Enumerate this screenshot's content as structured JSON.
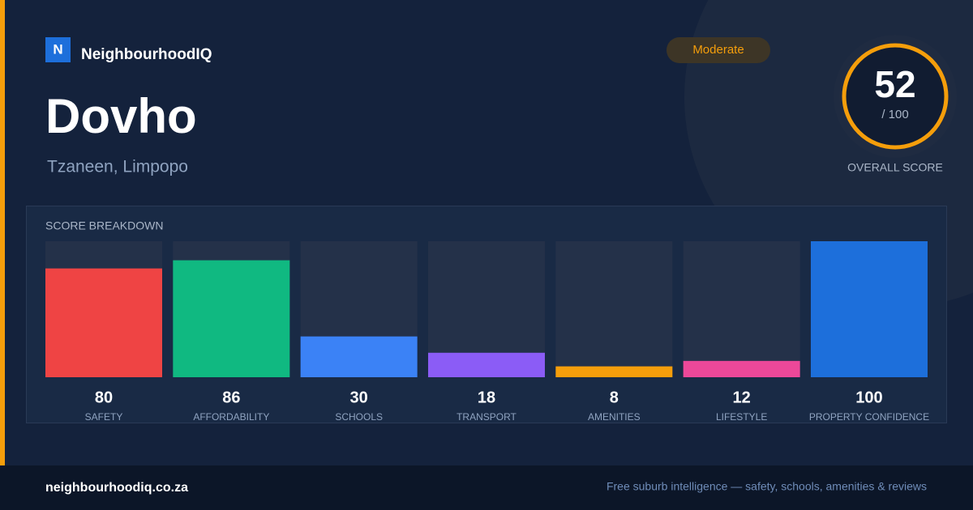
{
  "header": {
    "brand_initial": "N",
    "brand": "NeighbourhoodIQ",
    "badge": "Moderate",
    "title": "Dovho",
    "subtitle": "Tzaneen, Limpopo"
  },
  "score": {
    "value": 52,
    "out_of": "/ 100",
    "label": "OVERALL SCORE"
  },
  "chart_data": {
    "type": "bar",
    "title": "SCORE BREAKDOWN",
    "categories": [
      "SAFETY",
      "AFFORDABILITY",
      "SCHOOLS",
      "TRANSPORT",
      "AMENITIES",
      "LIFESTYLE",
      "PROPERTY CONFIDENCE"
    ],
    "values": [
      80,
      86,
      30,
      18,
      8,
      12,
      100
    ],
    "colors": [
      "#ef4444",
      "#10b981",
      "#3b82f6",
      "#8b5cf6",
      "#f59e0b",
      "#ec4899",
      "#1d6fdb"
    ],
    "ylim": [
      0,
      100
    ]
  },
  "footer": {
    "domain": "neighbourhoodiq.co.za",
    "tagline": "Free suburb intelligence — safety, schools, amenities & reviews"
  }
}
